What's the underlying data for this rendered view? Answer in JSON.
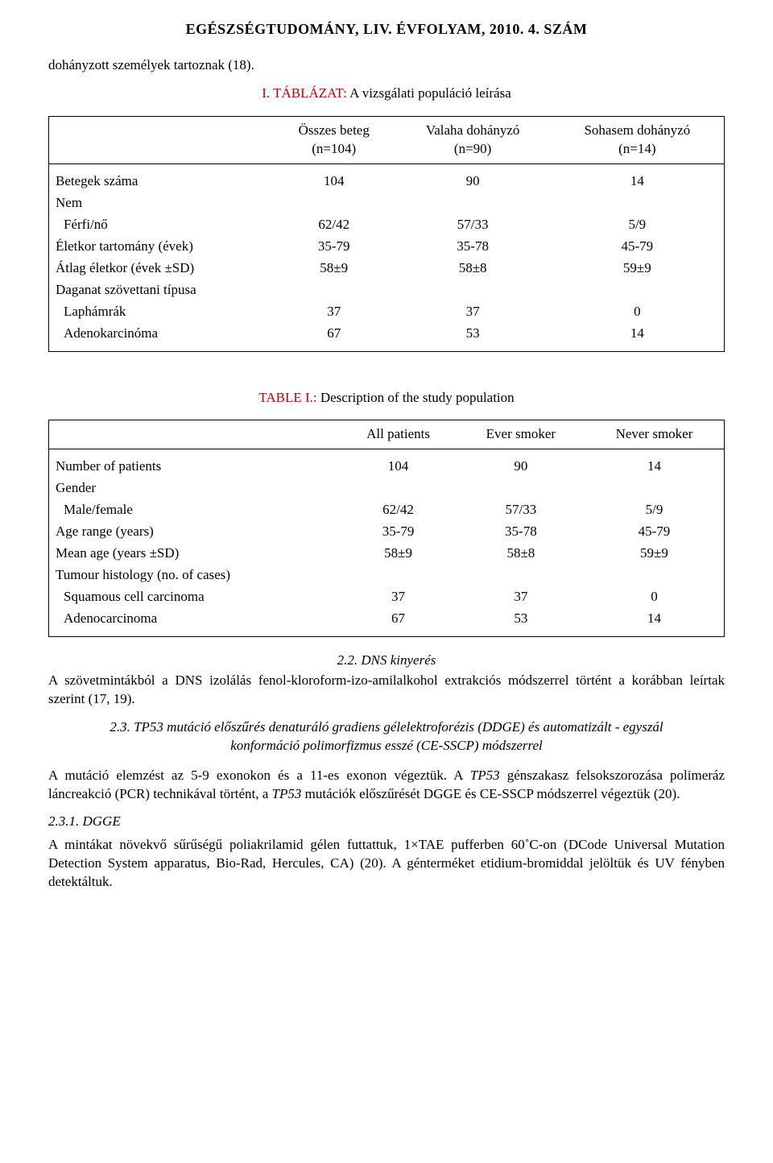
{
  "header": "EGÉSZSÉGTUDOMÁNY, LIV. ÉVFOLYAM, 2010. 4. SZÁM",
  "intro_sentence": "dohányzott személyek tartoznak (18).",
  "table1_caption_prefix": "I. TÁBLÁZAT:",
  "table1_caption_rest": " A vizsgálati populáció leírása",
  "table1": {
    "headers": [
      "",
      "Összes beteg\n(n=104)",
      "Valaha dohányzó\n(n=90)",
      "Sohasem dohányzó\n(n=14)"
    ],
    "rows": [
      {
        "label": "Betegek száma",
        "indent": 0,
        "cells": [
          "104",
          "90",
          "14"
        ]
      },
      {
        "label": "Nem",
        "indent": 0,
        "cells": [
          "",
          "",
          ""
        ]
      },
      {
        "label": "Férfi/nő",
        "indent": 1,
        "cells": [
          "62/42",
          "57/33",
          "5/9"
        ]
      },
      {
        "label": "Életkor tartomány (évek)",
        "indent": 0,
        "cells": [
          "35-79",
          "35-78",
          "45-79"
        ]
      },
      {
        "label": "Átlag életkor (évek ±SD)",
        "indent": 0,
        "cells": [
          "58±9",
          "58±8",
          "59±9"
        ]
      },
      {
        "label": "Daganat szövettani típusa",
        "indent": 0,
        "cells": [
          "",
          "",
          ""
        ]
      },
      {
        "label": "Laphámrák",
        "indent": 1,
        "cells": [
          "37",
          "37",
          "0"
        ]
      },
      {
        "label": "Adenokarcinóma",
        "indent": 1,
        "cells": [
          "67",
          "53",
          "14"
        ]
      }
    ]
  },
  "table2_caption_prefix": "TABLE I.:",
  "table2_caption_rest": " Description of the study population",
  "table2": {
    "headers": [
      "",
      "All patients",
      "Ever smoker",
      "Never smoker"
    ],
    "rows": [
      {
        "label": "Number of patients",
        "indent": 0,
        "cells": [
          "104",
          "90",
          "14"
        ]
      },
      {
        "label": "Gender",
        "indent": 0,
        "cells": [
          "",
          "",
          ""
        ]
      },
      {
        "label": "Male/female",
        "indent": 1,
        "cells": [
          "62/42",
          "57/33",
          "5/9"
        ]
      },
      {
        "label": "Age range (years)",
        "indent": 0,
        "cells": [
          "35-79",
          "35-78",
          "45-79"
        ]
      },
      {
        "label": "Mean age  (years ±SD)",
        "indent": 0,
        "cells": [
          "58±9",
          "58±8",
          "59±9"
        ]
      },
      {
        "label": "Tumour histology (no. of cases)",
        "indent": 0,
        "cells": [
          "",
          "",
          ""
        ]
      },
      {
        "label": "Squamous cell carcinoma",
        "indent": 1,
        "cells": [
          "37",
          "37",
          "0"
        ]
      },
      {
        "label": "Adenocarcinoma",
        "indent": 1,
        "cells": [
          "67",
          "53",
          "14"
        ]
      }
    ]
  },
  "sec22_title": "2.2. DNS kinyerés",
  "sec22_body": "A szövetmintákból a DNS izolálás fenol-kloroform-izo-amilalkohol extrakciós módszerrel történt a korábban leírtak szerint (17, 19).",
  "sec23_title": "2.3. TP53 mutáció előszűrés denaturáló gradiens gélelektroforézis (DDGE) és automatizált - egyszál konformáció polimorfizmus esszé (CE-SSCP) módszerrel",
  "sec23_body_pre": "A mutáció elemzést az 5-9 exonokon és a 11-es exonon végeztük. A ",
  "sec23_body_tp53_1": "TP53",
  "sec23_body_mid": " génszakasz felsokszorozása polimeráz láncreakció (PCR) technikával történt, a ",
  "sec23_body_tp53_2": "TP53",
  "sec23_body_post": " mutációk előszűrését DGGE és CE-SSCP módszerrel végeztük (20).",
  "sec231_title": "2.3.1. DGGE",
  "sec231_body": "A mintákat növekvő sűrűségű poliakrilamid gélen futtattuk, 1×TAE pufferben 60˚C-on (DCode Universal Mutation Detection System apparatus, Bio-Rad, Hercules, CA) (20). A génterméket etidium-bromiddal jelöltük és UV fényben detektáltuk."
}
